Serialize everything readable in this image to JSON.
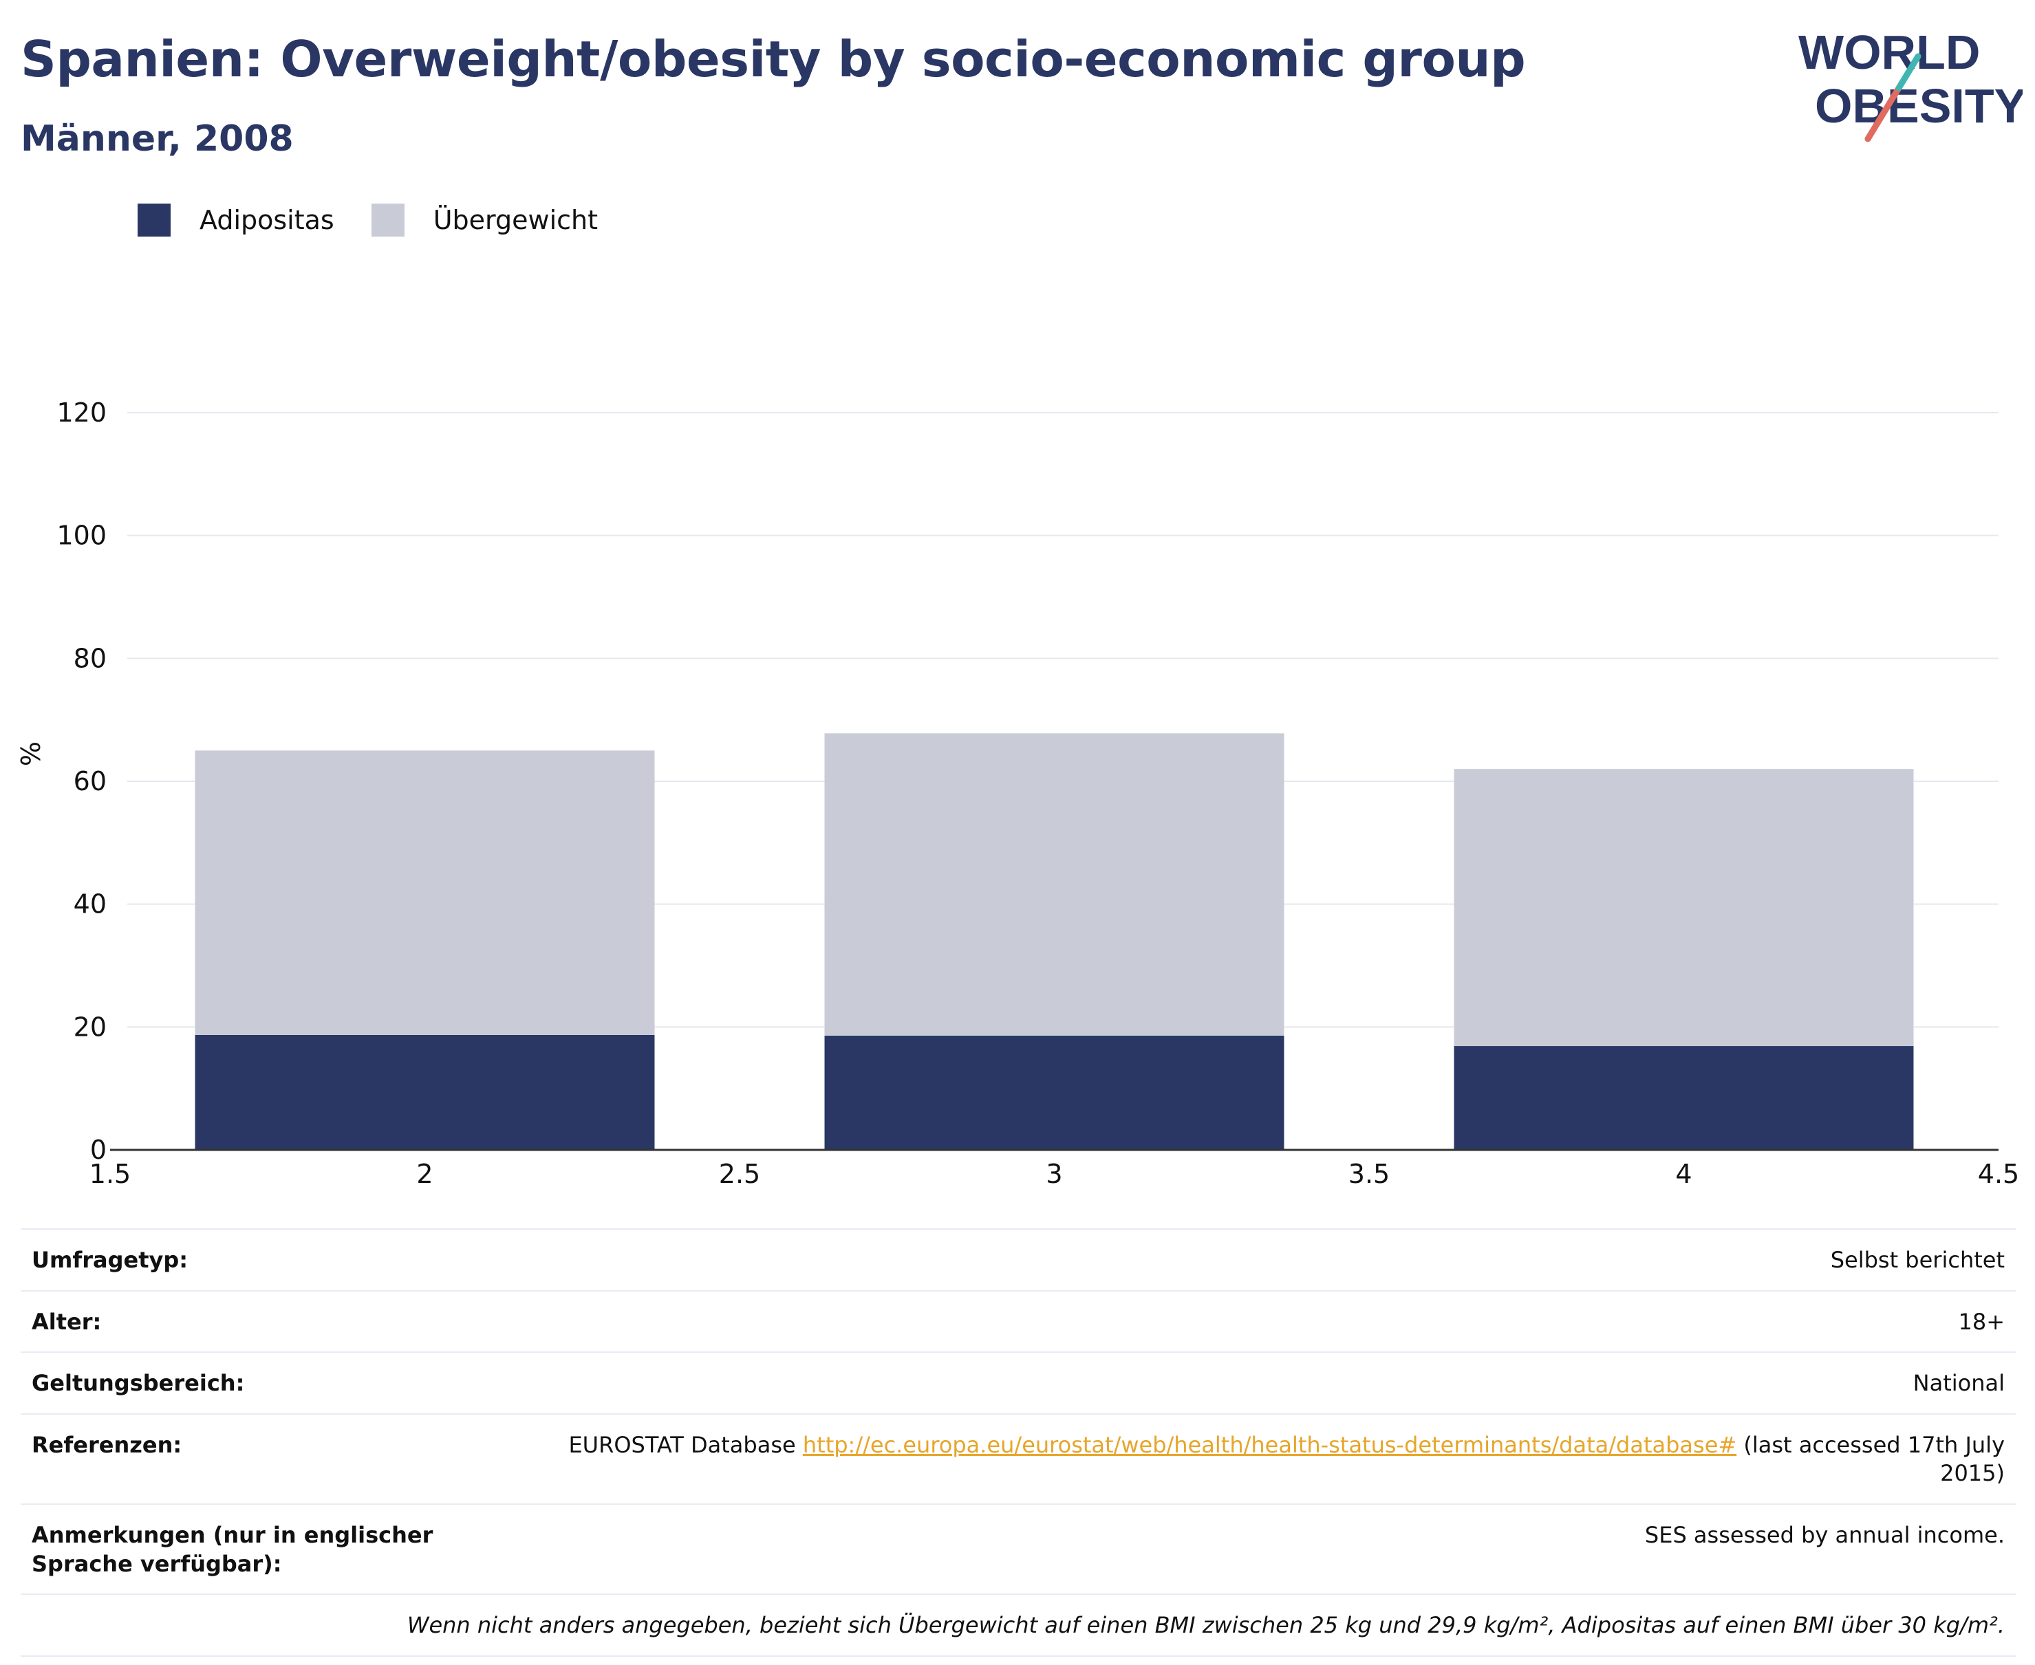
{
  "title": "Spanien: Overweight/obesity by socio-economic group",
  "subtitle": "Männer, 2008",
  "logo": {
    "line1": "WORLD",
    "line2": "OBESITY"
  },
  "colors": {
    "navy": "#2a3764",
    "grey": "#c9cbd7",
    "link": "#e7a52a"
  },
  "legend": [
    {
      "label": "Adipositas",
      "color": "#2a3764"
    },
    {
      "label": "Übergewicht",
      "color": "#c9cbd7"
    }
  ],
  "chart_data": {
    "type": "bar",
    "stacked": true,
    "x": [
      2,
      3,
      4
    ],
    "series": [
      {
        "name": "Adipositas",
        "values": [
          18.7,
          18.6,
          16.9
        ],
        "color": "#2a3764"
      },
      {
        "name": "Übergewicht",
        "values": [
          46.3,
          49.2,
          45.1
        ],
        "color": "#c9cbd7"
      }
    ],
    "ylabel": "%",
    "xlim": [
      1.5,
      4.5
    ],
    "ylim": [
      0,
      120
    ],
    "yticks": [
      0,
      20,
      40,
      60,
      80,
      100,
      120
    ],
    "xticks": [
      "1.5",
      "2",
      "2.5",
      "3",
      "3.5",
      "4",
      "4.5"
    ],
    "grid": true,
    "legend_position": "top-left"
  },
  "info": {
    "survey_type_label": "Umfragetyp:",
    "survey_type_value": "Selbst berichtet",
    "age_label": "Alter:",
    "age_value": "18+",
    "scope_label": "Geltungsbereich:",
    "scope_value": "National",
    "references_label": "Referenzen:",
    "references_prefix": "EUROSTAT Database ",
    "references_link": "http://ec.europa.eu/eurostat/web/health/health-status-determinants/data/database#",
    "references_suffix": " (last accessed 17th July 2015)",
    "notes_label": "Anmerkungen (nur in englischer Sprache verfügbar):",
    "notes_value": "SES assessed by annual income.",
    "footnote": "Wenn nicht anders angegeben, bezieht sich Übergewicht auf einen BMI zwischen 25 kg und 29,9 kg/m², Adipositas auf einen BMI über 30 kg/m²."
  }
}
